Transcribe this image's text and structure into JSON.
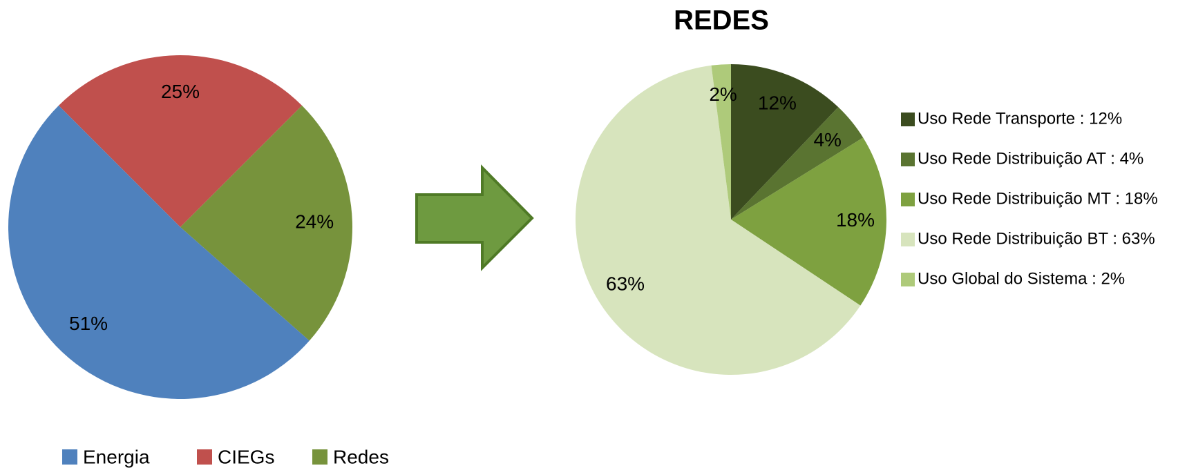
{
  "chart_data": [
    {
      "type": "pie",
      "categories": [
        "Energia",
        "CIEGs",
        "Redes"
      ],
      "values": [
        51,
        25,
        24
      ],
      "value_labels": [
        "51%",
        "25%",
        "24%"
      ],
      "colors": [
        "#4f81bd",
        "#c0504d",
        "#77933c"
      ],
      "order": [
        1,
        2,
        0
      ],
      "start_angle": -45,
      "legend": "bottom"
    },
    {
      "type": "pie",
      "title": "REDES",
      "categories": [
        "Uso Rede Transporte",
        "Uso Rede Distribuição AT",
        "Uso Rede Distribuição MT",
        "Uso Rede Distribuição BT",
        "Uso Global do Sistema"
      ],
      "legend_labels": [
        "Uso Rede Transporte  :  12%",
        "Uso Rede Distribuição AT  :  4%",
        "Uso Rede Distribuição MT  :  18%",
        "Uso Rede Distribuição BT  :  63%",
        "Uso Global do Sistema  :  2%"
      ],
      "values": [
        12,
        4,
        18,
        63,
        2
      ],
      "value_labels": [
        "12%",
        "4%",
        "18%",
        "63%",
        "2%"
      ],
      "colors": [
        "#3b4c1f",
        "#5a7431",
        "#7ea140",
        "#d7e4bd",
        "#aeca7a"
      ],
      "order": [
        0,
        1,
        2,
        3,
        4
      ],
      "start_angle": 0,
      "legend": "right"
    }
  ]
}
